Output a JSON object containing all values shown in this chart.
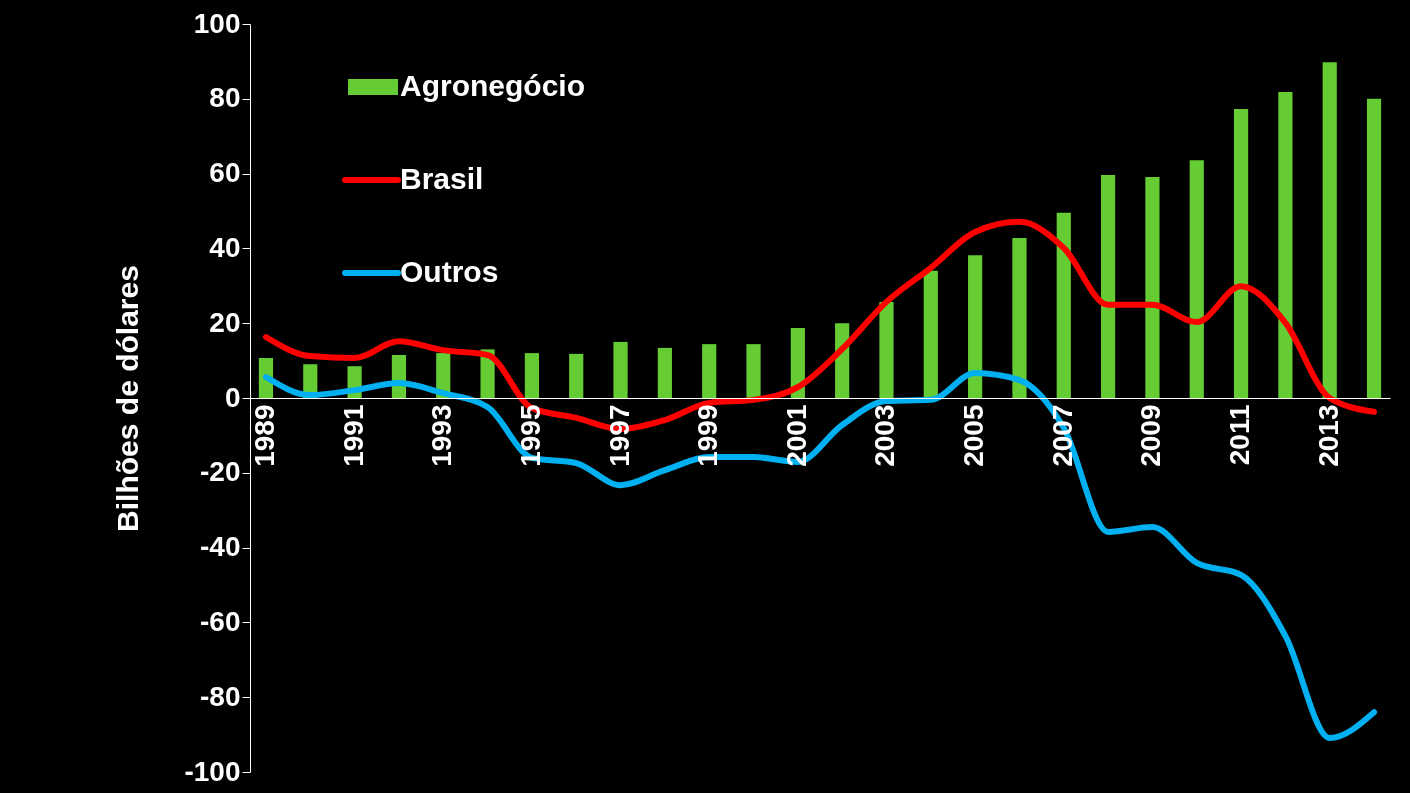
{
  "chart_data": {
    "type": "bar",
    "ylabel": "Bilhões de dólares",
    "categories": [
      "1989",
      null,
      "1991",
      null,
      "1993",
      null,
      "1995",
      null,
      "1997",
      null,
      "1999",
      null,
      "2001",
      null,
      "2003",
      null,
      "2005",
      null,
      "2007",
      null,
      "2009",
      null,
      "2011",
      null,
      "2013",
      null
    ],
    "series": [
      {
        "name": "Agronegócio",
        "color": "#66cc33",
        "values": [
          10.7,
          9,
          8.5,
          11.5,
          12,
          13,
          12,
          11.8,
          15,
          13.4,
          14.4,
          14.4,
          18.7,
          20,
          25.7,
          34,
          38.2,
          42.8,
          49.5,
          59.6,
          59.1,
          63.6,
          77.3,
          81.8,
          89.8,
          80
        ]
      },
      {
        "name": "Brasil",
        "type": "line",
        "color": "#ff0000",
        "values": [
          16.3,
          11.2,
          10.7,
          15.2,
          12.8,
          11.5,
          -2.7,
          -5.3,
          -8.3,
          -5.9,
          -1.3,
          -0.5,
          2.9,
          13.1,
          25.7,
          34.8,
          44.4,
          47.1,
          40.1,
          24.9,
          24.9,
          20.3,
          29.9,
          20.1,
          0,
          -3.7
        ]
      },
      {
        "name": "Outros",
        "type": "line",
        "color": "#00b0f0",
        "values": [
          5.6,
          0.8,
          2.1,
          4,
          1.3,
          -2.4,
          -16,
          -17.4,
          -23.3,
          -19.3,
          -15.8,
          -15.8,
          -17.1,
          -7.2,
          -0.8,
          -0.5,
          6.7,
          4.8,
          -8,
          -35.8,
          -34.5,
          -44.1,
          -47.3,
          -63.6,
          -90.9,
          -84
        ]
      }
    ],
    "ylim": [
      -100,
      100
    ],
    "yticks": [
      -100,
      -80,
      -60,
      -40,
      -20,
      0,
      20,
      40,
      60,
      80,
      100
    ],
    "grid": false,
    "legend": "top left"
  }
}
